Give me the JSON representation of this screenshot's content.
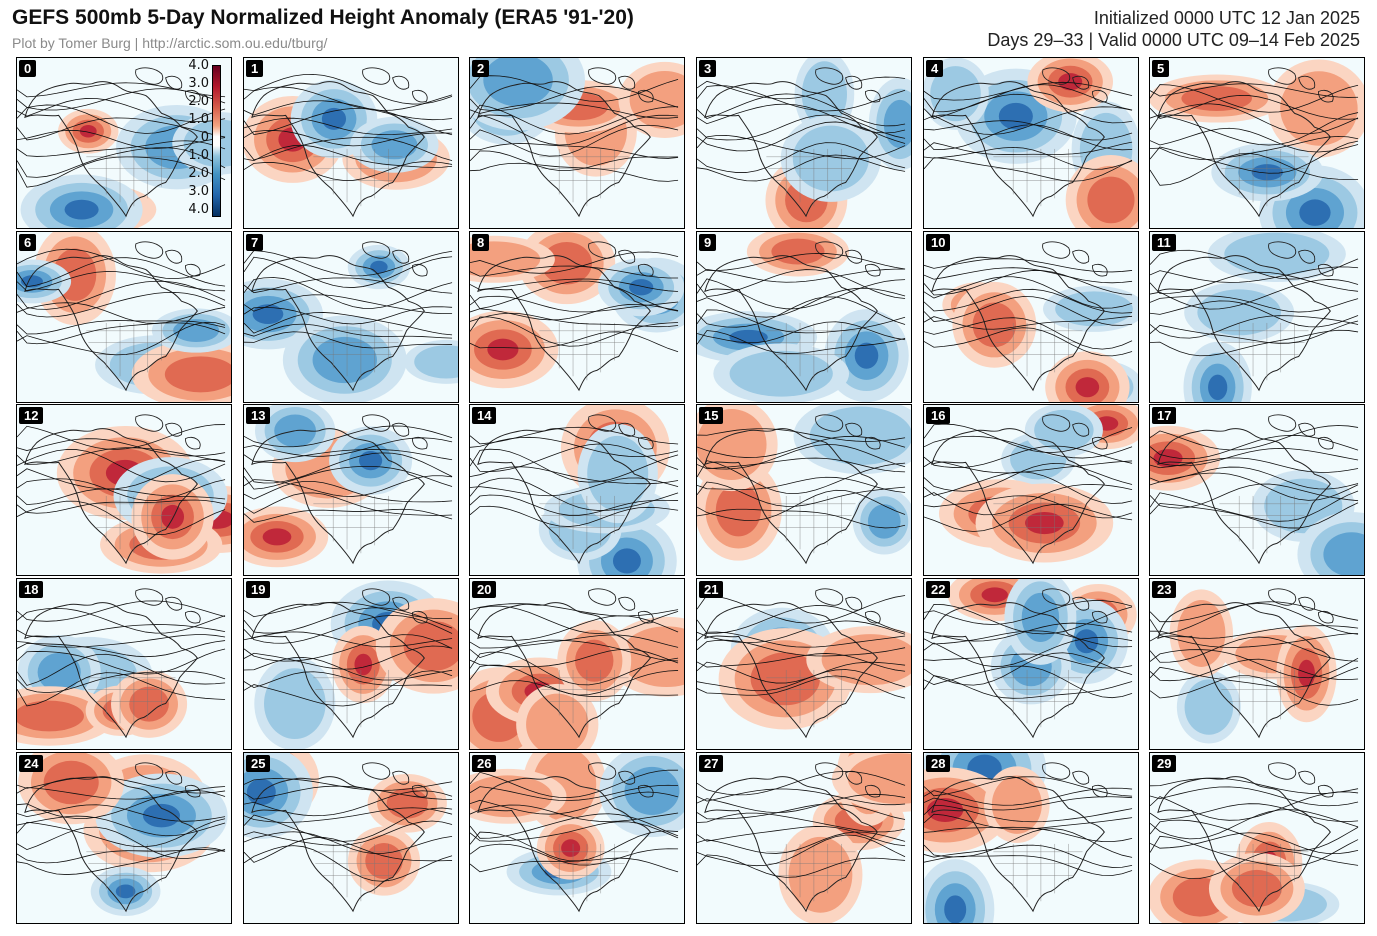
{
  "header": {
    "title": "GEFS 500mb 5-Day Normalized Height Anomaly (ERA5 '91-'20)",
    "credit": "Plot by Tomer Burg | http://arctic.som.ou.edu/tburg/",
    "initialized": "Initialized 0000 UTC 12 Jan 2025",
    "valid": "Days 29–33 | Valid 0000 UTC 09–14 Feb 2025"
  },
  "colorbar": {
    "labels": [
      "4.0",
      "3.0",
      "2.0",
      "1.0",
      "0",
      "1.0",
      "2.0",
      "3.0",
      "4.0"
    ],
    "colors": [
      "#67001f",
      "#b2182b",
      "#d6604d",
      "#f4a582",
      "#fddbc7",
      "#ffffff",
      "#d1e5f0",
      "#92c5de",
      "#4393c3",
      "#2166ac",
      "#053061"
    ]
  },
  "members": [
    "0",
    "1",
    "2",
    "3",
    "4",
    "5",
    "6",
    "7",
    "8",
    "9",
    "10",
    "11",
    "12",
    "13",
    "14",
    "15",
    "16",
    "17",
    "18",
    "19",
    "20",
    "21",
    "22",
    "23",
    "24",
    "25",
    "26",
    "27",
    "28",
    "29"
  ]
}
